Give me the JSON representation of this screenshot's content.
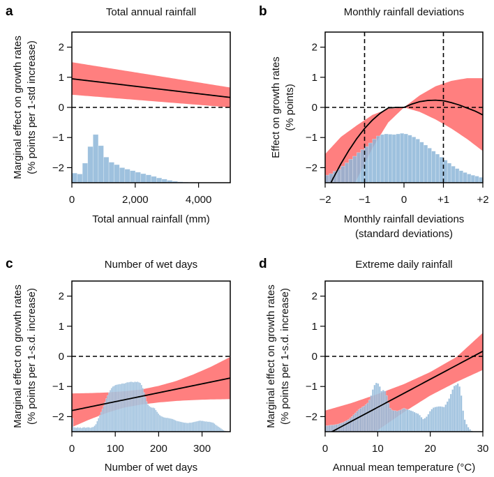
{
  "colors": {
    "ribbon": "#FF7F7F",
    "histogram": "#8DB6D8",
    "histogram_opacity": 0.85,
    "line": "#000000",
    "frame": "#000000"
  },
  "chart_data": [
    {
      "id": "a",
      "type": "line",
      "letter": "a",
      "title": "Total annual rainfall",
      "xlabel": [
        "Total annual rainfall (mm)"
      ],
      "ylabel": [
        "Marginal effect on growth rates",
        "(% points per 1-std increase)"
      ],
      "xlim": [
        0,
        5000
      ],
      "ylim": [
        -2.5,
        2.5
      ],
      "xticks": [
        0,
        2000,
        4000
      ],
      "xtick_labels": [
        "0",
        "2,000",
        "4,000"
      ],
      "yticks": [
        2,
        1,
        0,
        -1,
        -2
      ],
      "ytick_labels": [
        "2",
        "1",
        "0",
        "−1",
        "−2"
      ],
      "hlines_dashed": [
        0
      ],
      "vlines_dashed": [],
      "fit": {
        "x": [
          0,
          5000
        ],
        "y": [
          0.95,
          0.33
        ]
      },
      "ci": {
        "x": [
          0,
          5000
        ],
        "lower": [
          0.42,
          0.0
        ],
        "upper": [
          1.5,
          0.66
        ]
      },
      "histogram": {
        "bin_edges_start": 0,
        "bin_width": 167,
        "heights": [
          0.32,
          0.29,
          0.65,
          1.2,
          1.6,
          1.23,
          0.85,
          0.68,
          0.6,
          0.5,
          0.45,
          0.4,
          0.35,
          0.3,
          0.26,
          0.21,
          0.16,
          0.12,
          0.08,
          0.05,
          0.03,
          0.02,
          0.01,
          0.005,
          0.003,
          0.002,
          0.001,
          0.001,
          0.0,
          0.0
        ]
      }
    },
    {
      "id": "b",
      "type": "line",
      "letter": "b",
      "title": "Monthly rainfall deviations",
      "xlabel": [
        "Monthly rainfall deviations",
        "(standard deviations)"
      ],
      "ylabel": [
        "Effect on growth rates",
        "(% points)"
      ],
      "xlim": [
        -2,
        2
      ],
      "ylim": [
        -2.5,
        2.5
      ],
      "xticks": [
        -2,
        -1,
        0,
        1,
        2
      ],
      "xtick_labels": [
        "−2",
        "−1",
        "0",
        "+1",
        "+2"
      ],
      "yticks": [
        2,
        1,
        0,
        -1,
        -2
      ],
      "ytick_labels": [
        "2",
        "1",
        "0",
        "−1",
        "−2"
      ],
      "hlines_dashed": [
        0
      ],
      "vlines_dashed": [
        -1,
        1
      ],
      "fit": {
        "x": [
          -2,
          -1.8,
          -1.6,
          -1.4,
          -1.2,
          -1,
          -0.8,
          -0.6,
          -0.4,
          -0.2,
          0,
          0.2,
          0.4,
          0.6,
          0.8,
          1,
          1.2,
          1.4,
          1.6,
          1.8,
          2
        ],
        "y": [
          -2.9,
          -2.36,
          -1.87,
          -1.43,
          -1.04,
          -0.7,
          -0.42,
          -0.19,
          -0.02,
          0.0,
          0.0,
          0.11,
          0.19,
          0.23,
          0.24,
          0.22,
          0.16,
          0.08,
          -0.02,
          -0.12,
          -0.25
        ]
      },
      "ci": {
        "x": [
          -2,
          -1.6,
          -1.2,
          -0.8,
          -0.4,
          0,
          0.4,
          0.8,
          1.2,
          1.6,
          2
        ],
        "lower": [
          -3.6,
          -3.2,
          -2.4,
          -1.35,
          -0.5,
          0.0,
          -0.15,
          -0.4,
          -0.7,
          -1.05,
          -1.45
        ],
        "upper": [
          -1.55,
          -0.98,
          -0.6,
          -0.25,
          -0.05,
          0.0,
          0.4,
          0.7,
          0.88,
          0.97,
          0.97
        ]
      },
      "histogram": {
        "bin_edges_start": -2,
        "bin_width": 0.1,
        "heights": [
          0.25,
          0.3,
          0.38,
          0.45,
          0.55,
          0.66,
          0.78,
          0.88,
          1.0,
          1.1,
          1.2,
          1.32,
          1.45,
          1.55,
          1.6,
          1.62,
          1.61,
          1.6,
          1.62,
          1.64,
          1.62,
          1.58,
          1.52,
          1.45,
          1.35,
          1.25,
          1.15,
          1.05,
          0.95,
          0.85,
          0.75,
          0.65,
          0.55,
          0.47,
          0.4,
          0.34,
          0.29,
          0.25,
          0.22,
          0.18
        ]
      }
    },
    {
      "id": "c",
      "type": "line",
      "letter": "c",
      "title": "Number of wet days",
      "xlabel": [
        "Number of wet days"
      ],
      "ylabel": [
        "Marginal effect on growth rates",
        "(% points per 1-s.d. increase)"
      ],
      "xlim": [
        0,
        365
      ],
      "ylim": [
        -2.5,
        2.5
      ],
      "xticks": [
        0,
        100,
        200,
        300
      ],
      "xtick_labels": [
        "0",
        "100",
        "200",
        "300"
      ],
      "yticks": [
        2,
        1,
        0,
        -1,
        -2
      ],
      "ytick_labels": [
        "2",
        "1",
        "0",
        "−1",
        "−2"
      ],
      "hlines_dashed": [
        0
      ],
      "vlines_dashed": [],
      "fit": {
        "x": [
          0,
          365
        ],
        "y": [
          -1.8,
          -0.72
        ]
      },
      "ci": {
        "x": [
          0,
          40,
          80,
          120,
          160,
          200,
          240,
          280,
          320,
          365
        ],
        "lower": [
          -2.35,
          -2.1,
          -1.88,
          -1.7,
          -1.6,
          -1.53,
          -1.48,
          -1.45,
          -1.43,
          -1.42
        ],
        "upper": [
          -1.23,
          -1.22,
          -1.2,
          -1.16,
          -1.1,
          -0.98,
          -0.82,
          -0.6,
          -0.35,
          -0.02
        ]
      },
      "histogram": {
        "bin_edges_start": 0,
        "bin_width": 3,
        "heights": [
          0.45,
          0.15,
          0.14,
          0.13,
          0.15,
          0.13,
          0.14,
          0.12,
          0.14,
          0.15,
          0.13,
          0.14,
          0.15,
          0.14,
          0.13,
          0.15,
          0.16,
          0.2,
          0.25,
          0.35,
          0.45,
          0.55,
          0.65,
          0.75,
          0.85,
          0.98,
          1.1,
          1.2,
          1.3,
          1.38,
          1.45,
          1.5,
          1.52,
          1.55,
          1.56,
          1.57,
          1.58,
          1.58,
          1.6,
          1.6,
          1.6,
          1.62,
          1.64,
          1.64,
          1.65,
          1.66,
          1.65,
          1.64,
          1.66,
          1.65,
          1.66,
          1.64,
          1.62,
          1.55,
          1.45,
          1.3,
          1.15,
          1.0,
          0.9,
          0.85,
          0.82,
          0.8,
          0.8,
          0.78,
          0.72,
          0.66,
          0.6,
          0.55,
          0.52,
          0.5,
          0.48,
          0.47,
          0.46,
          0.46,
          0.45,
          0.44,
          0.43,
          0.42,
          0.4,
          0.38,
          0.36,
          0.35,
          0.34,
          0.33,
          0.32,
          0.31,
          0.3,
          0.3,
          0.29,
          0.29,
          0.3,
          0.3,
          0.31,
          0.32,
          0.33,
          0.34,
          0.35,
          0.36,
          0.37,
          0.36,
          0.36,
          0.35,
          0.34,
          0.34,
          0.33,
          0.33,
          0.32,
          0.31,
          0.3,
          0.27,
          0.23,
          0.2,
          0.17,
          0.14,
          0.11,
          0.08,
          0.05,
          0.03,
          0.02,
          0.01,
          0.01,
          0.0
        ]
      }
    },
    {
      "id": "d",
      "type": "line",
      "letter": "d",
      "title": "Extreme daily rainfall",
      "xlabel": [
        "Annual mean temperature (°C)"
      ],
      "ylabel": [
        "Marginal effect on growth rates",
        "(% points per 1-s.d. increase)"
      ],
      "xlim": [
        0,
        30
      ],
      "ylim": [
        -2.5,
        2.5
      ],
      "xticks": [
        0,
        10,
        20,
        30
      ],
      "xtick_labels": [
        "0",
        "10",
        "20",
        "30"
      ],
      "yticks": [
        2,
        1,
        0,
        -1,
        -2
      ],
      "ytick_labels": [
        "2",
        "1",
        "0",
        "−1",
        "−2"
      ],
      "hlines_dashed": [
        0
      ],
      "vlines_dashed": [],
      "fit": {
        "x": [
          0,
          30
        ],
        "y": [
          -2.62,
          0.17
        ]
      },
      "ci": {
        "x": [
          0,
          5,
          10,
          15,
          20,
          25,
          30
        ],
        "lower": [
          -3.6,
          -3.05,
          -2.45,
          -1.85,
          -1.3,
          -0.85,
          -0.45
        ],
        "upper": [
          -1.8,
          -1.55,
          -1.25,
          -0.92,
          -0.52,
          -0.02,
          0.78
        ]
      },
      "histogram": {
        "bin_edges_start": 0,
        "bin_width": 0.33,
        "heights": [
          0.2,
          0.2,
          0.21,
          0.22,
          0.22,
          0.23,
          0.24,
          0.25,
          0.27,
          0.29,
          0.31,
          0.34,
          0.37,
          0.4,
          0.45,
          0.5,
          0.56,
          0.62,
          0.68,
          0.74,
          0.78,
          0.82,
          0.85,
          0.9,
          0.95,
          1.05,
          1.2,
          1.4,
          1.55,
          1.62,
          1.6,
          1.5,
          1.35,
          1.38,
          1.35,
          1.2,
          0.95,
          0.78,
          0.72,
          0.7,
          0.7,
          0.68,
          0.7,
          0.72,
          0.75,
          0.78,
          0.75,
          0.74,
          0.72,
          0.7,
          0.68,
          0.65,
          0.62,
          0.6,
          0.55,
          0.48,
          0.42,
          0.45,
          0.5,
          0.58,
          0.68,
          0.75,
          0.8,
          0.82,
          0.83,
          0.84,
          0.84,
          0.83,
          0.82,
          0.9,
          1.0,
          1.1,
          1.25,
          1.4,
          1.52,
          1.55,
          1.6,
          1.5,
          1.2,
          0.7,
          0.4,
          0.25,
          0.15,
          0.08,
          0.03,
          0.01,
          0.0,
          0.0,
          0.0,
          0.0
        ]
      }
    }
  ]
}
